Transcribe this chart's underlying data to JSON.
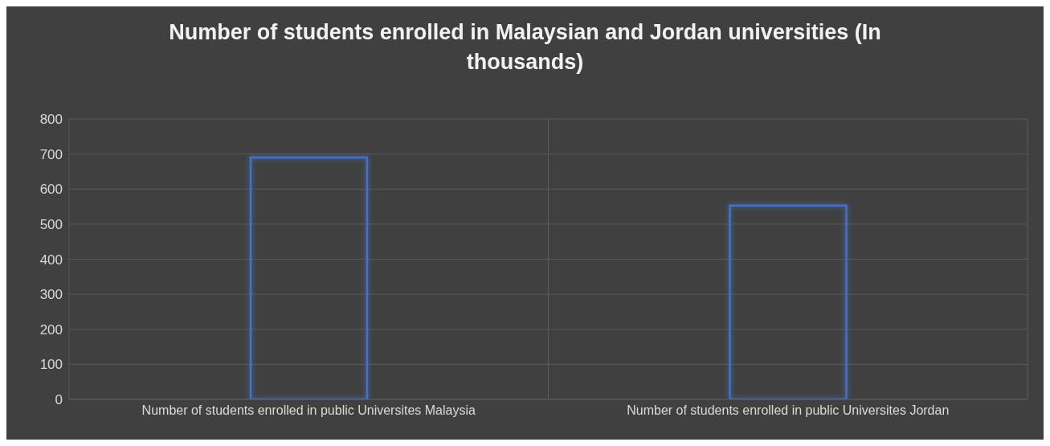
{
  "chart_data": {
    "type": "bar",
    "title": "Number of students enrolled in Malaysian and Jordan universities (In thousands)",
    "categories": [
      "Number of students enrolled in public Universites Malaysia",
      "Number of students enrolled in public Universites Jordan"
    ],
    "values": [
      690,
      553
    ],
    "color": "#4472c4",
    "ylim": [
      0,
      800
    ],
    "yticks": [
      0,
      100,
      200,
      300,
      400,
      500,
      600,
      700,
      800
    ],
    "grid": true
  }
}
